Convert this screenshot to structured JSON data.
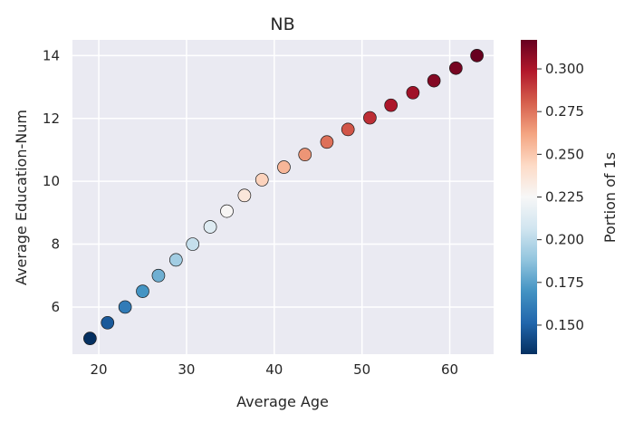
{
  "chart_data": {
    "type": "scatter",
    "title": "NB",
    "xlabel": "Average Age",
    "ylabel": "Average Education-Num",
    "xlim": [
      17,
      65
    ],
    "ylim": [
      4.5,
      14.5
    ],
    "xticks": [
      20,
      30,
      40,
      50,
      60
    ],
    "yticks": [
      6,
      8,
      10,
      12,
      14
    ],
    "grid": true,
    "colorbar": {
      "label": "Portion of 1s",
      "colormap": "RdBu_r",
      "range": [
        0.133,
        0.317
      ],
      "ticks": [
        0.15,
        0.175,
        0.2,
        0.225,
        0.25,
        0.275,
        0.3
      ],
      "tick_labels": [
        "0.150",
        "0.175",
        "0.200",
        "0.225",
        "0.250",
        "0.275",
        "0.300"
      ],
      "colors": [
        "#053061",
        "#2166ac",
        "#4393c3",
        "#92c5de",
        "#d1e5f0",
        "#f7f7f7",
        "#fddbc7",
        "#f4a582",
        "#d6604d",
        "#b2182b",
        "#67001f"
      ]
    },
    "points": [
      {
        "x": 19.0,
        "y": 5.0,
        "c": 0.133
      },
      {
        "x": 21.0,
        "y": 5.5,
        "c": 0.147
      },
      {
        "x": 23.0,
        "y": 6.0,
        "c": 0.16
      },
      {
        "x": 25.0,
        "y": 6.5,
        "c": 0.17
      },
      {
        "x": 26.8,
        "y": 7.0,
        "c": 0.18
      },
      {
        "x": 28.8,
        "y": 7.5,
        "c": 0.193
      },
      {
        "x": 30.7,
        "y": 8.0,
        "c": 0.203
      },
      {
        "x": 32.7,
        "y": 8.55,
        "c": 0.213
      },
      {
        "x": 34.6,
        "y": 9.05,
        "c": 0.226
      },
      {
        "x": 36.6,
        "y": 9.55,
        "c": 0.236
      },
      {
        "x": 38.6,
        "y": 10.05,
        "c": 0.246
      },
      {
        "x": 41.1,
        "y": 10.45,
        "c": 0.256
      },
      {
        "x": 43.5,
        "y": 10.85,
        "c": 0.266
      },
      {
        "x": 46.0,
        "y": 11.25,
        "c": 0.276
      },
      {
        "x": 48.4,
        "y": 11.65,
        "c": 0.283
      },
      {
        "x": 50.9,
        "y": 12.02,
        "c": 0.293
      },
      {
        "x": 53.3,
        "y": 12.42,
        "c": 0.3
      },
      {
        "x": 55.8,
        "y": 12.82,
        "c": 0.303
      },
      {
        "x": 58.2,
        "y": 13.2,
        "c": 0.31
      },
      {
        "x": 60.7,
        "y": 13.6,
        "c": 0.313
      },
      {
        "x": 63.1,
        "y": 14.0,
        "c": 0.317
      }
    ]
  }
}
